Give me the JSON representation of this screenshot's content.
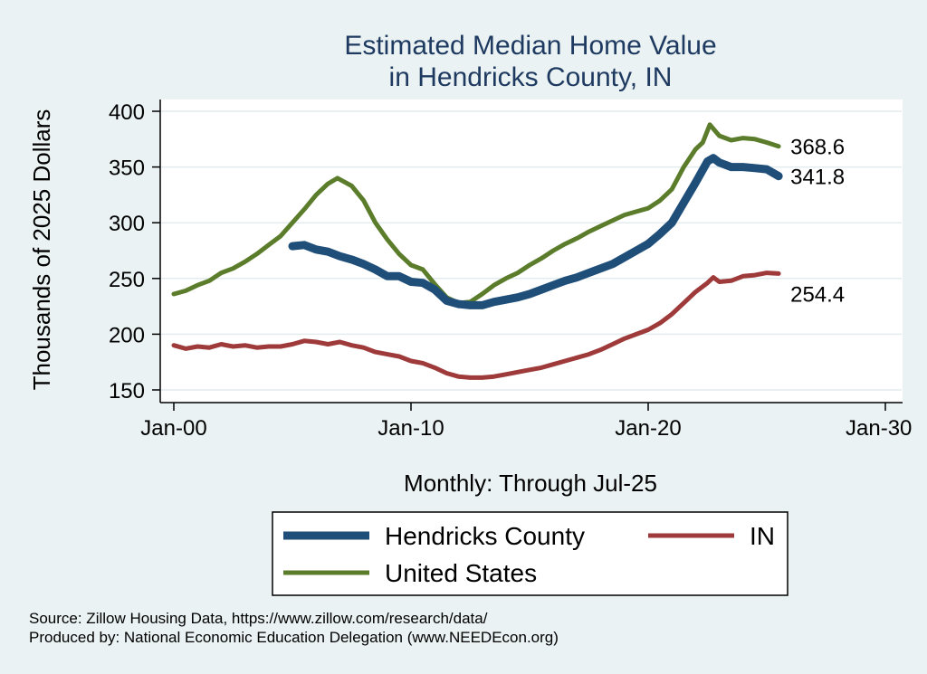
{
  "chart_data": {
    "type": "line",
    "title": "Estimated Median Home Value",
    "subtitle": "in Hendricks County, IN",
    "ylabel": "Thousands of 2025 Dollars",
    "xlabel": "Monthly: Through Jul-25",
    "xlim": [
      2000,
      2030
    ],
    "ylim": [
      140,
      410
    ],
    "x_ticks": [
      {
        "value": 2000,
        "label": "Jan-00"
      },
      {
        "value": 2010,
        "label": "Jan-10"
      },
      {
        "value": 2020,
        "label": "Jan-20"
      },
      {
        "value": 2030,
        "label": "Jan-30"
      }
    ],
    "y_ticks": [
      150,
      200,
      250,
      300,
      350,
      400
    ],
    "grid": true,
    "legend_position": "bottom",
    "series": [
      {
        "name": "Hendricks County",
        "color": "#1f4e79",
        "end_label": "341.8",
        "points": [
          [
            2005.0,
            279
          ],
          [
            2005.5,
            280
          ],
          [
            2006.0,
            276
          ],
          [
            2006.5,
            274
          ],
          [
            2007.0,
            270
          ],
          [
            2007.5,
            267
          ],
          [
            2008.0,
            263
          ],
          [
            2008.5,
            258
          ],
          [
            2009.0,
            252
          ],
          [
            2009.5,
            252
          ],
          [
            2010.0,
            247
          ],
          [
            2010.5,
            246
          ],
          [
            2011.0,
            240
          ],
          [
            2011.5,
            230
          ],
          [
            2012.0,
            227
          ],
          [
            2012.5,
            226
          ],
          [
            2013.0,
            226
          ],
          [
            2013.5,
            229
          ],
          [
            2014.0,
            231
          ],
          [
            2014.5,
            233
          ],
          [
            2015.0,
            236
          ],
          [
            2015.5,
            240
          ],
          [
            2016.0,
            244
          ],
          [
            2016.5,
            248
          ],
          [
            2017.0,
            251
          ],
          [
            2017.5,
            255
          ],
          [
            2018.0,
            259
          ],
          [
            2018.5,
            263
          ],
          [
            2019.0,
            269
          ],
          [
            2019.5,
            275
          ],
          [
            2020.0,
            281
          ],
          [
            2020.5,
            290
          ],
          [
            2021.0,
            300
          ],
          [
            2021.5,
            318
          ],
          [
            2022.0,
            336
          ],
          [
            2022.5,
            355
          ],
          [
            2022.75,
            358
          ],
          [
            2023.0,
            354
          ],
          [
            2023.5,
            350
          ],
          [
            2024.0,
            350
          ],
          [
            2024.5,
            349
          ],
          [
            2025.0,
            348
          ],
          [
            2025.5,
            341.8
          ]
        ]
      },
      {
        "name": "United States",
        "color": "#5b7d2b",
        "end_label": "368.6",
        "points": [
          [
            2000.0,
            236
          ],
          [
            2000.5,
            239
          ],
          [
            2001.0,
            244
          ],
          [
            2001.5,
            248
          ],
          [
            2002.0,
            255
          ],
          [
            2002.5,
            259
          ],
          [
            2003.0,
            265
          ],
          [
            2003.5,
            272
          ],
          [
            2004.0,
            280
          ],
          [
            2004.5,
            288
          ],
          [
            2005.0,
            300
          ],
          [
            2005.5,
            312
          ],
          [
            2006.0,
            325
          ],
          [
            2006.5,
            335
          ],
          [
            2006.9,
            340
          ],
          [
            2007.5,
            333
          ],
          [
            2008.0,
            320
          ],
          [
            2008.5,
            300
          ],
          [
            2009.0,
            285
          ],
          [
            2009.5,
            272
          ],
          [
            2010.0,
            262
          ],
          [
            2010.5,
            258
          ],
          [
            2011.0,
            245
          ],
          [
            2011.5,
            233
          ],
          [
            2012.0,
            228
          ],
          [
            2012.5,
            229
          ],
          [
            2013.0,
            236
          ],
          [
            2013.5,
            244
          ],
          [
            2014.0,
            250
          ],
          [
            2014.5,
            255
          ],
          [
            2015.0,
            262
          ],
          [
            2015.5,
            268
          ],
          [
            2016.0,
            275
          ],
          [
            2016.5,
            281
          ],
          [
            2017.0,
            286
          ],
          [
            2017.5,
            292
          ],
          [
            2018.0,
            297
          ],
          [
            2018.5,
            302
          ],
          [
            2019.0,
            307
          ],
          [
            2019.5,
            310
          ],
          [
            2020.0,
            313
          ],
          [
            2020.5,
            320
          ],
          [
            2021.0,
            330
          ],
          [
            2021.5,
            350
          ],
          [
            2022.0,
            366
          ],
          [
            2022.3,
            372
          ],
          [
            2022.6,
            388
          ],
          [
            2023.0,
            378
          ],
          [
            2023.5,
            374
          ],
          [
            2024.0,
            376
          ],
          [
            2024.5,
            375
          ],
          [
            2025.0,
            372
          ],
          [
            2025.5,
            368.6
          ]
        ]
      },
      {
        "name": "IN",
        "color": "#9e3a3a",
        "end_label": "254.4",
        "points": [
          [
            2000.0,
            190
          ],
          [
            2000.5,
            187
          ],
          [
            2001.0,
            189
          ],
          [
            2001.5,
            188
          ],
          [
            2002.0,
            191
          ],
          [
            2002.5,
            189
          ],
          [
            2003.0,
            190
          ],
          [
            2003.5,
            188
          ],
          [
            2004.0,
            189
          ],
          [
            2004.5,
            189
          ],
          [
            2005.0,
            191
          ],
          [
            2005.5,
            194
          ],
          [
            2006.0,
            193
          ],
          [
            2006.5,
            191
          ],
          [
            2007.0,
            193
          ],
          [
            2007.5,
            190
          ],
          [
            2008.0,
            188
          ],
          [
            2008.5,
            184
          ],
          [
            2009.0,
            182
          ],
          [
            2009.5,
            180
          ],
          [
            2010.0,
            176
          ],
          [
            2010.5,
            174
          ],
          [
            2011.0,
            170
          ],
          [
            2011.5,
            165
          ],
          [
            2012.0,
            162
          ],
          [
            2012.5,
            161
          ],
          [
            2013.0,
            161
          ],
          [
            2013.5,
            162
          ],
          [
            2014.0,
            164
          ],
          [
            2014.5,
            166
          ],
          [
            2015.0,
            168
          ],
          [
            2015.5,
            170
          ],
          [
            2016.0,
            173
          ],
          [
            2016.5,
            176
          ],
          [
            2017.0,
            179
          ],
          [
            2017.5,
            182
          ],
          [
            2018.0,
            186
          ],
          [
            2018.5,
            191
          ],
          [
            2019.0,
            196
          ],
          [
            2019.5,
            200
          ],
          [
            2020.0,
            204
          ],
          [
            2020.5,
            210
          ],
          [
            2021.0,
            218
          ],
          [
            2021.5,
            228
          ],
          [
            2022.0,
            238
          ],
          [
            2022.5,
            246
          ],
          [
            2022.75,
            251
          ],
          [
            2023.0,
            247
          ],
          [
            2023.5,
            248
          ],
          [
            2024.0,
            252
          ],
          [
            2024.5,
            253
          ],
          [
            2025.0,
            255
          ],
          [
            2025.5,
            254.4
          ]
        ]
      }
    ],
    "legend": [
      {
        "label": "Hendricks County",
        "color": "#1f4e79"
      },
      {
        "label": "IN",
        "color": "#9e3a3a"
      },
      {
        "label": "United States",
        "color": "#5b7d2b"
      }
    ]
  },
  "source": {
    "line1": "Source: Zillow Housing Data, https://www.zillow.com/research/data/",
    "line2": "Produced by: National Economic Education Delegation (www.NEEDEcon.org)"
  }
}
